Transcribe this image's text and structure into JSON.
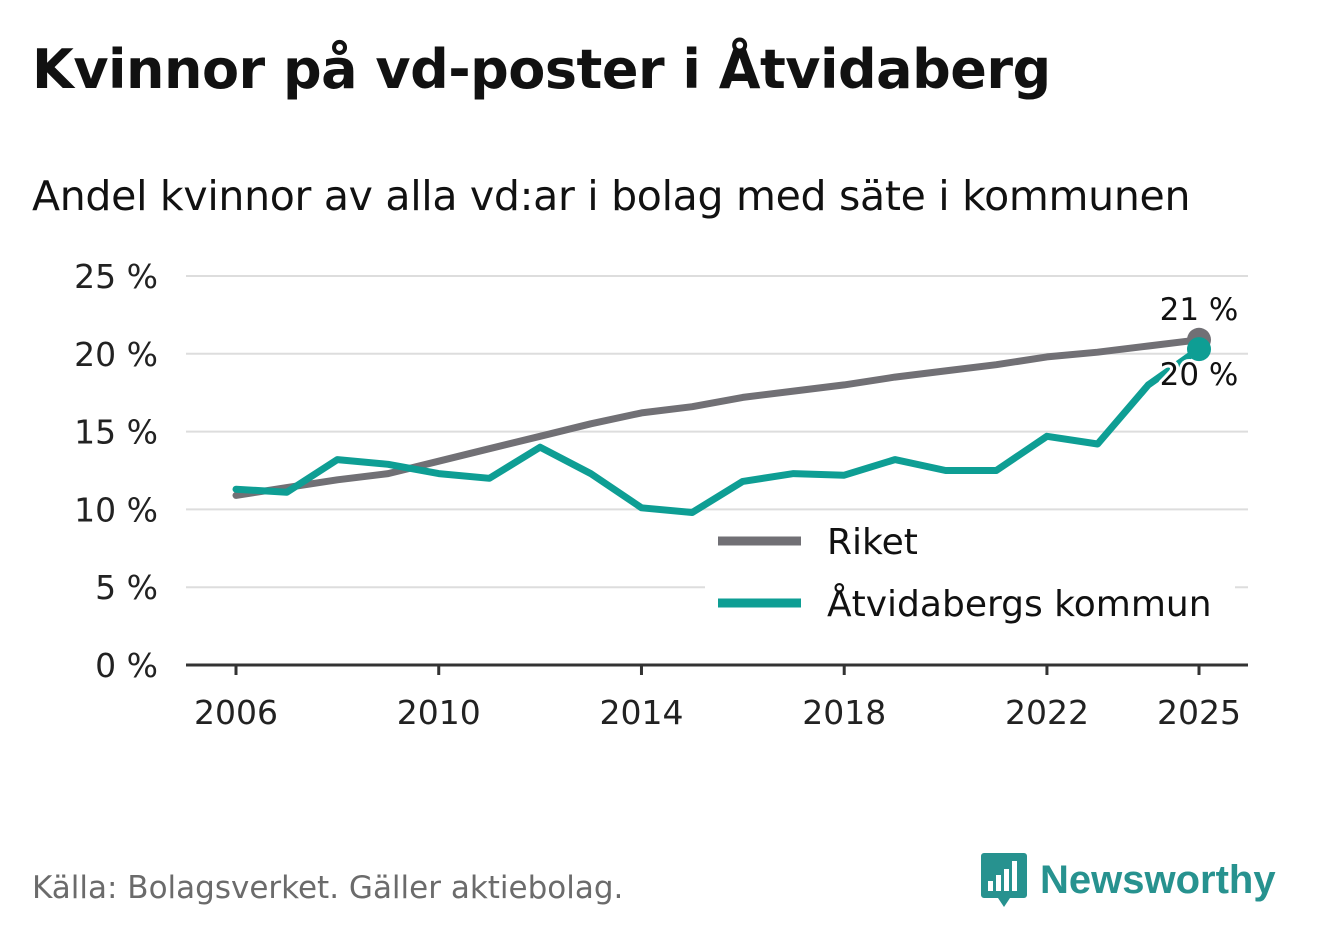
{
  "title": "Kvinnor på vd-poster i Åtvidaberg",
  "subtitle": "Andel kvinnor av alla vd:ar i bolag med säte i kommunen",
  "source": "Källa: Bolagsverket. Gäller aktiebolag.",
  "logo_text": "Newsworthy",
  "colors": {
    "riket": "#717075",
    "kommun": "#0e9e94",
    "grid": "#dddddd",
    "axis": "#333333"
  },
  "chart_data": {
    "type": "line",
    "title": "Andel kvinnor av alla vd:ar i bolag med säte i kommunen",
    "xlabel": "",
    "ylabel": "",
    "xlim": [
      2006,
      2025
    ],
    "ylim": [
      0,
      25
    ],
    "y_ticks": [
      0,
      5,
      10,
      15,
      20,
      25
    ],
    "y_tick_labels": [
      "0 %",
      "5 %",
      "10 %",
      "15 %",
      "20 %",
      "25 %"
    ],
    "x_ticks": [
      2006,
      2010,
      2014,
      2018,
      2022,
      2025
    ],
    "x_tick_labels": [
      "2006",
      "2010",
      "2014",
      "2018",
      "2022",
      "2025"
    ],
    "grid": true,
    "legend_position": "bottom-right",
    "x": [
      2006,
      2007,
      2008,
      2009,
      2010,
      2011,
      2012,
      2013,
      2014,
      2015,
      2016,
      2017,
      2018,
      2019,
      2020,
      2021,
      2022,
      2023,
      2024,
      2025
    ],
    "series": [
      {
        "name": "Riket",
        "values": [
          10.9,
          11.4,
          11.9,
          12.3,
          13.1,
          13.9,
          14.7,
          15.5,
          16.2,
          16.6,
          17.2,
          17.6,
          18.0,
          18.5,
          18.9,
          19.3,
          19.8,
          20.1,
          20.5,
          20.9
        ],
        "end_label": "21 %"
      },
      {
        "name": "Åtvidabergs kommun",
        "values": [
          11.3,
          11.1,
          13.2,
          12.9,
          12.3,
          12.0,
          14.0,
          12.3,
          10.1,
          9.8,
          11.8,
          12.3,
          12.2,
          13.2,
          12.5,
          12.5,
          14.7,
          14.2,
          18.0,
          20.3
        ],
        "end_label": "20 %"
      }
    ]
  }
}
